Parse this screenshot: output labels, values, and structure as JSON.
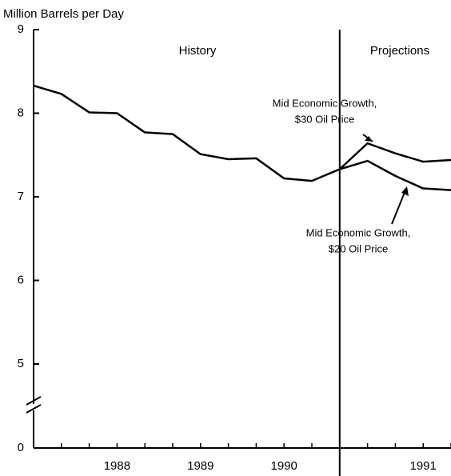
{
  "chart_data": {
    "type": "line",
    "y_axis_label": "Million Barrels per Day",
    "categories": [
      null,
      null,
      null,
      "1988",
      null,
      null,
      "1989",
      null,
      null,
      "1990",
      null,
      null,
      null,
      null,
      "1991",
      null
    ],
    "series": [
      {
        "color": "#000000",
        "values": [
          8.33,
          8.23,
          8.01,
          8.0,
          7.77,
          7.75,
          7.51,
          7.45,
          7.46,
          7.22,
          7.19,
          7.33,
          null,
          null,
          null,
          null
        ]
      },
      {
        "name": [
          "Mid Economic Growth,",
          "$30 Oil Price"
        ],
        "color": "#000000",
        "values": [
          null,
          null,
          null,
          null,
          null,
          null,
          null,
          null,
          null,
          null,
          null,
          7.33,
          7.64,
          7.52,
          7.42,
          7.44
        ]
      },
      {
        "name": [
          "Mid Economic Growth,",
          "$20 Oil Price"
        ],
        "color": "#000000",
        "values": [
          null,
          null,
          null,
          null,
          null,
          null,
          null,
          null,
          null,
          null,
          null,
          7.33,
          7.43,
          7.25,
          7.1,
          7.08
        ]
      }
    ],
    "ylim": [
      5,
      9
    ],
    "yticks": [
      0,
      5,
      6,
      7,
      8,
      9
    ],
    "axis_break": true,
    "annotations": [
      "History",
      "Projections"
    ]
  }
}
